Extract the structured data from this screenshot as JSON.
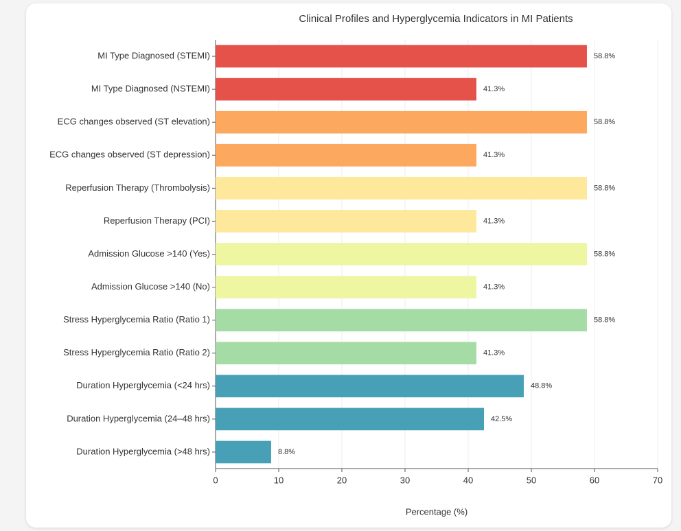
{
  "chart_data": {
    "type": "barh",
    "title": "Clinical Profiles and Hyperglycemia Indicators in MI Patients",
    "xlabel": "Percentage (%)",
    "categories": [
      "MI Type Diagnosed (STEMI)",
      "MI Type Diagnosed (NSTEMI)",
      "ECG changes observed (ST elevation)",
      "ECG changes observed (ST depression)",
      "Reperfusion Therapy (Thrombolysis)",
      "Reperfusion Therapy (PCI)",
      "Admission Glucose >140 (Yes)",
      "Admission Glucose >140 (No)",
      "Stress Hyperglycemia Ratio (Ratio 1)",
      "Stress Hyperglycemia Ratio (Ratio 2)",
      "Duration Hyperglycemia (<24 hrs)",
      "Duration Hyperglycemia (24–48 hrs)",
      "Duration Hyperglycemia (>48 hrs)"
    ],
    "values": [
      58.8,
      41.3,
      58.8,
      41.3,
      58.8,
      41.3,
      58.8,
      41.3,
      58.8,
      41.3,
      48.8,
      42.5,
      8.8
    ],
    "value_labels": [
      "58.8%",
      "41.3%",
      "58.8%",
      "41.3%",
      "58.8%",
      "41.3%",
      "58.8%",
      "41.3%",
      "58.8%",
      "41.3%",
      "48.8%",
      "42.5%",
      "8.8%"
    ],
    "colors": [
      "#e4524a",
      "#e4524a",
      "#fca85f",
      "#fca85f",
      "#fde89b",
      "#fde89b",
      "#eef6a2",
      "#eef6a2",
      "#a5dba5",
      "#a5dba5",
      "#48a0b7",
      "#48a0b7",
      "#48a0b7"
    ],
    "xlim": [
      0,
      70
    ],
    "xticks": [
      0,
      10,
      20,
      30,
      40,
      50,
      60,
      70
    ],
    "grid": true
  }
}
